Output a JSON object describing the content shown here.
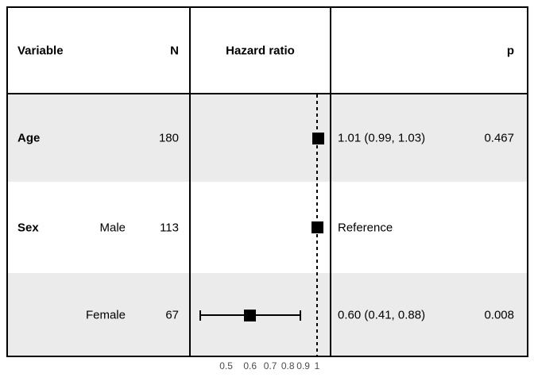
{
  "table": {
    "headers": {
      "variable": "Variable",
      "n": "N",
      "hazard_ratio": "Hazard ratio",
      "p": "p"
    }
  },
  "chart_data": {
    "type": "scatter",
    "subtype": "forest-plot",
    "title": "",
    "xlabel": "",
    "ylabel": "",
    "x_scale": "log10",
    "xlim": [
      0.38,
      1.11
    ],
    "reference_line_x": 1,
    "x_ticks": [
      {
        "value": 0.5,
        "label": "0.5"
      },
      {
        "value": 0.6,
        "label": "0.6"
      },
      {
        "value": 0.7,
        "label": "0.7"
      },
      {
        "value": 0.8,
        "label": "0.8"
      },
      {
        "value": 0.9,
        "label": "0.9"
      },
      {
        "value": 1,
        "label": "1"
      }
    ],
    "columns": [
      "Variable",
      "N",
      "Hazard ratio",
      "p"
    ],
    "rows": [
      {
        "variable": "Age",
        "level": "",
        "n": "180",
        "hr": 1.01,
        "ci_low": 0.99,
        "ci_high": 1.03,
        "estimate": "1.01 (0.99, 1.03)",
        "p": "0.467"
      },
      {
        "variable": "Sex",
        "level": "Male",
        "n": "113",
        "hr": 1.0,
        "ci_low": null,
        "ci_high": null,
        "estimate": "Reference",
        "p": ""
      },
      {
        "variable": "",
        "level": "Female",
        "n": "67",
        "hr": 0.6,
        "ci_low": 0.41,
        "ci_high": 0.88,
        "estimate": "0.60 (0.41, 0.88)",
        "p": "0.008"
      }
    ]
  },
  "colors": {
    "row_stripe": "#ebebeb",
    "row_plain": "#ffffff",
    "border": "#000000",
    "text": "#000000",
    "tick_text": "#4d4d4d",
    "marker": "#000000"
  }
}
